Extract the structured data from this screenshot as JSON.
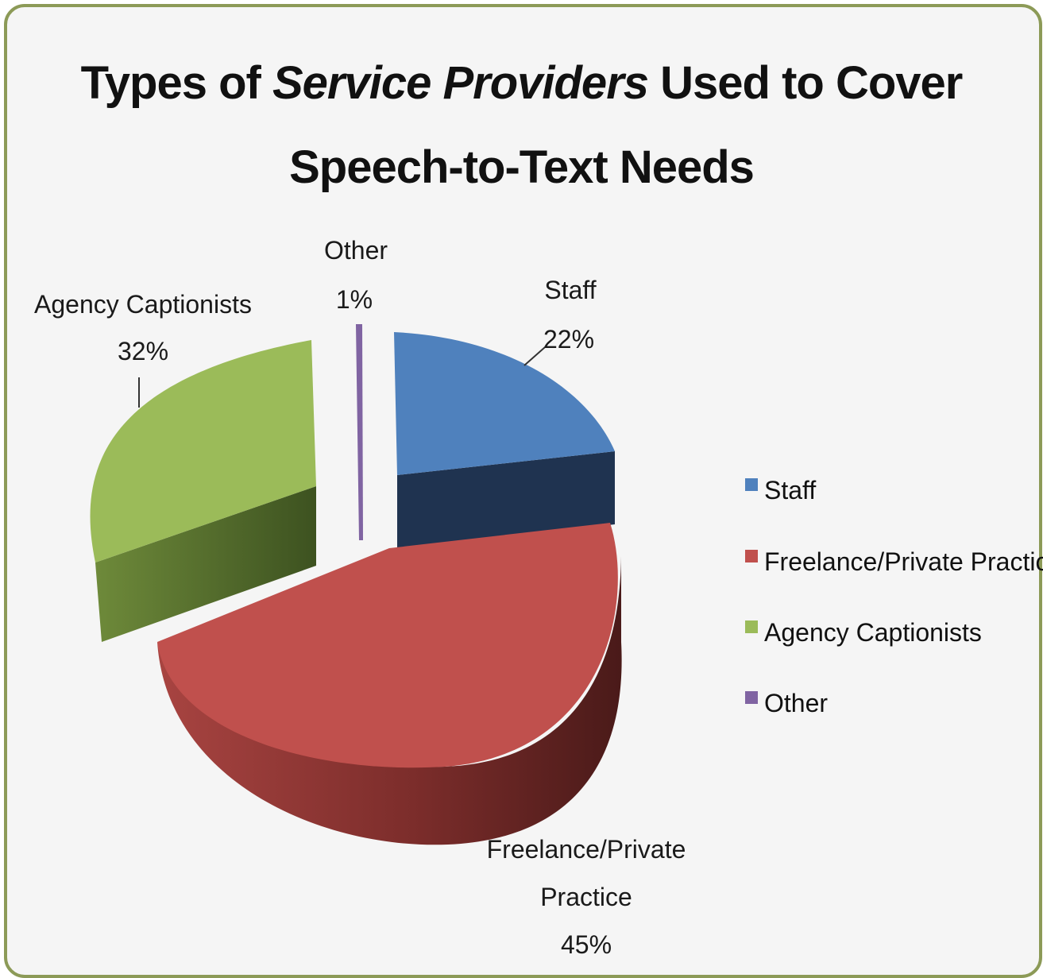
{
  "title": {
    "line1_pre": "Types of ",
    "line1_em": "Service Providers",
    "line1_post": " Used to Cover",
    "line2": "Speech-to-Text Needs"
  },
  "chart_data": {
    "type": "pie",
    "title": "Types of Service Providers Used to Cover Speech-to-Text Needs",
    "legend_position": "right",
    "categories": [
      "Staff",
      "Freelance/Private Practice",
      "Agency Captionists",
      "Other"
    ],
    "values": [
      22,
      45,
      32,
      1
    ],
    "unit": "%",
    "data_labels": [
      {
        "category": "Staff",
        "lines": [
          "Staff"
        ],
        "percent": "22%"
      },
      {
        "category": "Freelance/Private Practice",
        "lines": [
          "Freelance/Private",
          "Practice"
        ],
        "percent": "45%"
      },
      {
        "category": "Agency Captionists",
        "lines": [
          "Agency Captionists"
        ],
        "percent": "32%"
      },
      {
        "category": "Other",
        "lines": [
          "Other"
        ],
        "percent": "1%"
      }
    ],
    "colors": {
      "Staff": "#4f81bd",
      "Freelance/Private Practice": "#c0504d",
      "Agency Captionists": "#9bbb59",
      "Other": "#8064a2"
    }
  }
}
